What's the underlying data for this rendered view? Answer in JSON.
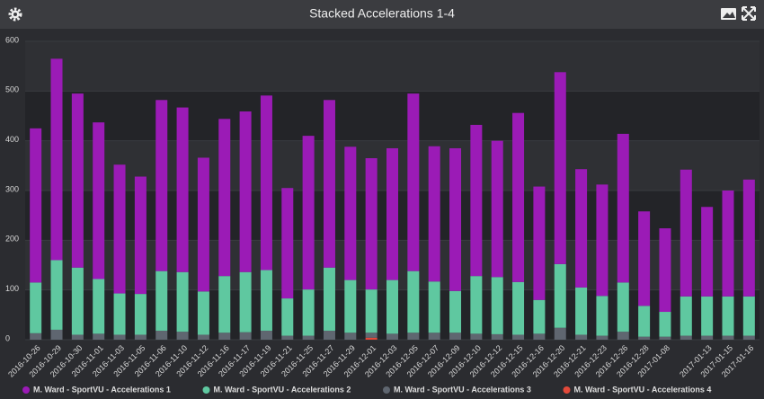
{
  "chart_data": {
    "type": "stacked_bar",
    "title": "Stacked Accelerations 1-4",
    "categories": [
      "2016-10-26",
      "2016-10-29",
      "2016-10-30",
      "2016-11-01",
      "2016-11-03",
      "2016-11-05",
      "2016-11-06",
      "2016-11-10",
      "2016-11-12",
      "2016-11-16",
      "2016-11-17",
      "2016-11-19",
      "2016-11-21",
      "2016-11-25",
      "2016-11-27",
      "2016-11-29",
      "2016-12-01",
      "2016-12-03",
      "2016-12-05",
      "2016-12-07",
      "2016-12-09",
      "2016-12-10",
      "2016-12-12",
      "2016-12-15",
      "2016-12-16",
      "2016-12-20",
      "2016-12-21",
      "2016-12-23",
      "2016-12-26",
      "2016-12-28",
      "2017-01-08",
      null,
      "2017-01-13",
      "2017-01-15",
      "2017-01-16"
    ],
    "series": [
      {
        "name": "M. Ward - SportVU - Accelerations 1",
        "color": "#9b1bb6",
        "values": [
          310,
          405,
          350,
          315,
          259,
          236,
          344,
          331,
          269,
          316,
          323,
          351,
          222,
          309,
          337,
          268,
          264,
          265,
          357,
          272,
          287,
          304,
          274,
          340,
          228,
          386,
          238,
          224,
          299,
          190,
          168,
          255,
          180,
          213,
          235
        ]
      },
      {
        "name": "M. Ward - SportVU - Accelerations 2",
        "color": "#5fc8a0",
        "values": [
          102,
          140,
          135,
          110,
          83,
          82,
          120,
          120,
          87,
          114,
          121,
          122,
          75,
          93,
          127,
          106,
          87,
          108,
          124,
          103,
          84,
          116,
          115,
          106,
          68,
          128,
          95,
          80,
          99,
          62,
          50,
          79,
          79,
          79,
          79
        ]
      },
      {
        "name": "M. Ward - SportVU - Accelerations 3",
        "color": "#5f6670",
        "values": [
          13,
          20,
          10,
          12,
          10,
          10,
          18,
          16,
          10,
          14,
          15,
          18,
          8,
          8,
          18,
          14,
          10,
          12,
          14,
          14,
          14,
          12,
          11,
          10,
          12,
          24,
          10,
          8,
          16,
          6,
          6,
          8,
          8,
          8,
          8
        ]
      },
      {
        "name": "M. Ward - SportVU - Accelerations 4",
        "color": "#e2493a",
        "values": [
          0,
          0,
          0,
          0,
          0,
          0,
          0,
          0,
          0,
          0,
          0,
          0,
          0,
          0,
          0,
          0,
          4,
          0,
          0,
          0,
          0,
          0,
          0,
          0,
          0,
          0,
          0,
          0,
          0,
          0,
          0,
          0,
          0,
          0,
          0
        ]
      }
    ],
    "ylim": [
      0,
      600
    ],
    "yticks": [
      0,
      100,
      200,
      300,
      400,
      500,
      600
    ],
    "grid": true
  }
}
